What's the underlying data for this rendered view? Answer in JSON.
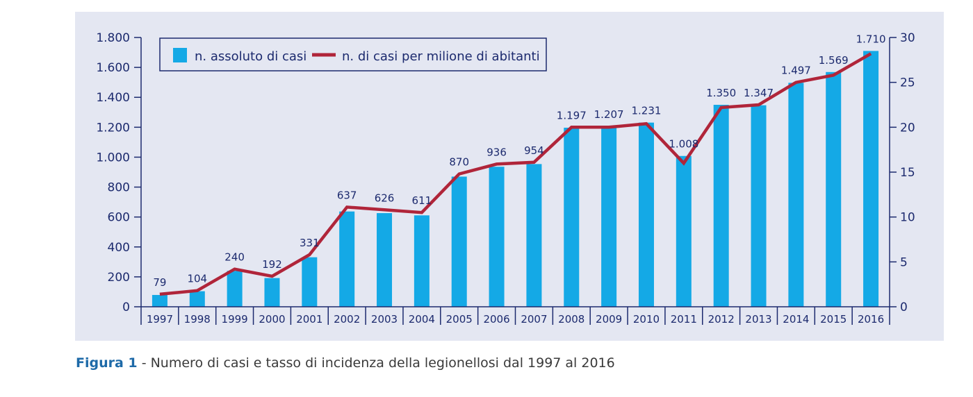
{
  "caption": {
    "label": "Figura 1",
    "separator": " - ",
    "text": "Numero di casi e tasso di incidenza della legionellosi dal 1997 al 2016"
  },
  "colors": {
    "panel_background": "#e4e7f2",
    "bars": "#14a9e6",
    "line": "#b0253a",
    "axis": "#1c2a6e",
    "data_labels": "#1c2a6e",
    "legend_border": "#1c2a6e",
    "caption_label": "#1e6aa8"
  },
  "chart_data": {
    "type": "bar",
    "title": "",
    "xlabel": "",
    "ylabel": "",
    "categories": [
      "1997",
      "1998",
      "1999",
      "2000",
      "2001",
      "2002",
      "2003",
      "2004",
      "2005",
      "2006",
      "2007",
      "2008",
      "2009",
      "2010",
      "2011",
      "2012",
      "2013",
      "2014",
      "2015",
      "2016"
    ],
    "series": [
      {
        "name": "n. assoluto di casi",
        "type": "bar",
        "axis": "left",
        "values": [
          79,
          104,
          240,
          192,
          331,
          637,
          626,
          611,
          870,
          936,
          954,
          1197,
          1207,
          1231,
          1008,
          1350,
          1347,
          1497,
          1569,
          1710
        ],
        "labels": [
          "79",
          "104",
          "240",
          "192",
          "331",
          "637",
          "626",
          "611",
          "870",
          "936",
          "954",
          "1.197",
          "1.207",
          "1.231",
          "1.008",
          "1.350",
          "1.347",
          "1.497",
          "1.569",
          "1.710"
        ]
      },
      {
        "name": "n. di casi per milione di abitanti",
        "type": "line",
        "axis": "right",
        "values": [
          1.4,
          1.8,
          4.2,
          3.4,
          5.8,
          11.1,
          10.8,
          10.5,
          14.8,
          15.9,
          16.1,
          20.0,
          20.0,
          20.4,
          16.0,
          22.2,
          22.5,
          25.0,
          25.8,
          28.2
        ]
      }
    ],
    "y_left": {
      "min": 0,
      "max": 1800,
      "ticks": [
        0,
        200,
        400,
        600,
        800,
        1000,
        1200,
        1400,
        1600,
        1800
      ],
      "tick_labels": [
        "0",
        "200",
        "400",
        "600",
        "800",
        "1.000",
        "1.200",
        "1.400",
        "1.600",
        "1.800"
      ]
    },
    "y_right": {
      "min": 0,
      "max": 30,
      "ticks": [
        0,
        5,
        10,
        15,
        20,
        25,
        30
      ],
      "tick_labels": [
        "0",
        "5",
        "10",
        "15",
        "20",
        "25",
        "30"
      ]
    },
    "grid": false,
    "legend_position": "top-left"
  }
}
